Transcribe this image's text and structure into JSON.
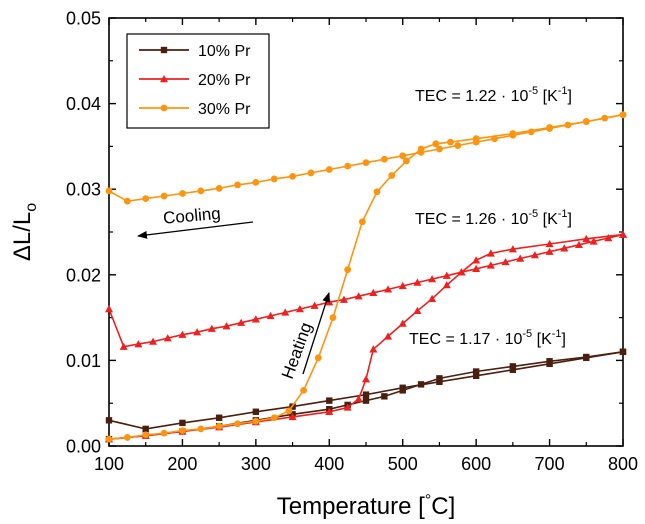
{
  "chart_data": {
    "type": "line",
    "xlabel_main": "Temperature [",
    "xlabel_deg": "°",
    "xlabel_end": "C]",
    "ylabel": "ΔL/L",
    "ylabel_sub": "o",
    "xlim": [
      100,
      800
    ],
    "ylim": [
      0.0,
      0.05
    ],
    "x_ticks": [
      "100",
      "200",
      "300",
      "400",
      "500",
      "600",
      "700",
      "800"
    ],
    "y_ticks": [
      "0.00",
      "0.01",
      "0.02",
      "0.03",
      "0.04",
      "0.05"
    ],
    "legend_position": "top-left",
    "series": [
      {
        "name": "10% Pr",
        "color": "#4a1f10",
        "marker": "square",
        "heating": [
          [
            100,
            0.0008
          ],
          [
            150,
            0.0012
          ],
          [
            200,
            0.0017
          ],
          [
            250,
            0.0023
          ],
          [
            300,
            0.003
          ],
          [
            350,
            0.0037
          ],
          [
            400,
            0.0043
          ],
          [
            425,
            0.0048
          ],
          [
            450,
            0.0053
          ],
          [
            475,
            0.0058
          ],
          [
            500,
            0.0065
          ],
          [
            525,
            0.0072
          ],
          [
            550,
            0.0079
          ],
          [
            600,
            0.0087
          ],
          [
            650,
            0.0093
          ],
          [
            700,
            0.0099
          ],
          [
            750,
            0.0104
          ],
          [
            800,
            0.011
          ]
        ],
        "cooling": [
          [
            800,
            0.011
          ],
          [
            750,
            0.0103
          ],
          [
            700,
            0.0096
          ],
          [
            650,
            0.0089
          ],
          [
            600,
            0.0082
          ],
          [
            550,
            0.0075
          ],
          [
            500,
            0.0068
          ],
          [
            450,
            0.006
          ],
          [
            400,
            0.0053
          ],
          [
            350,
            0.0046
          ],
          [
            300,
            0.004
          ],
          [
            250,
            0.0033
          ],
          [
            200,
            0.0027
          ],
          [
            150,
            0.002
          ],
          [
            100,
            0.003
          ]
        ]
      },
      {
        "name": "20% Pr",
        "color": "#ee2020",
        "marker": "triangle",
        "heating": [
          [
            100,
            0.0008
          ],
          [
            150,
            0.0012
          ],
          [
            200,
            0.0017
          ],
          [
            250,
            0.0022
          ],
          [
            300,
            0.0028
          ],
          [
            350,
            0.0034
          ],
          [
            400,
            0.004
          ],
          [
            425,
            0.0045
          ],
          [
            440,
            0.0055
          ],
          [
            450,
            0.0078
          ],
          [
            460,
            0.0113
          ],
          [
            480,
            0.0128
          ],
          [
            500,
            0.0143
          ],
          [
            520,
            0.0158
          ],
          [
            540,
            0.0172
          ],
          [
            560,
            0.0188
          ],
          [
            580,
            0.0203
          ],
          [
            600,
            0.0217
          ],
          [
            620,
            0.0225
          ],
          [
            650,
            0.023
          ],
          [
            700,
            0.0236
          ],
          [
            750,
            0.0242
          ],
          [
            800,
            0.0247
          ]
        ],
        "cooling": [
          [
            800,
            0.0247
          ],
          [
            780,
            0.0243
          ],
          [
            760,
            0.0239
          ],
          [
            740,
            0.0235
          ],
          [
            720,
            0.0231
          ],
          [
            700,
            0.0227
          ],
          [
            680,
            0.0223
          ],
          [
            660,
            0.0219
          ],
          [
            640,
            0.0215
          ],
          [
            620,
            0.0211
          ],
          [
            600,
            0.0207
          ],
          [
            580,
            0.0203
          ],
          [
            560,
            0.0199
          ],
          [
            540,
            0.0195
          ],
          [
            520,
            0.0191
          ],
          [
            500,
            0.0187
          ],
          [
            480,
            0.0183
          ],
          [
            460,
            0.0179
          ],
          [
            440,
            0.0175
          ],
          [
            420,
            0.0171
          ],
          [
            400,
            0.0168
          ],
          [
            380,
            0.0164
          ],
          [
            360,
            0.016
          ],
          [
            340,
            0.0156
          ],
          [
            320,
            0.0152
          ],
          [
            300,
            0.0148
          ],
          [
            280,
            0.0144
          ],
          [
            260,
            0.014
          ],
          [
            240,
            0.0137
          ],
          [
            220,
            0.0133
          ],
          [
            200,
            0.013
          ],
          [
            180,
            0.0126
          ],
          [
            160,
            0.0122
          ],
          [
            140,
            0.0119
          ],
          [
            120,
            0.0116
          ],
          [
            100,
            0.016
          ]
        ]
      },
      {
        "name": "30% Pr",
        "color": "#ff9410",
        "marker": "circle",
        "heating": [
          [
            100,
            0.0008
          ],
          [
            125,
            0.001
          ],
          [
            150,
            0.0013
          ],
          [
            175,
            0.0015
          ],
          [
            200,
            0.0018
          ],
          [
            225,
            0.002
          ],
          [
            250,
            0.0023
          ],
          [
            275,
            0.0026
          ],
          [
            300,
            0.0029
          ],
          [
            325,
            0.0033
          ],
          [
            345,
            0.0041
          ],
          [
            365,
            0.0065
          ],
          [
            385,
            0.0103
          ],
          [
            405,
            0.015
          ],
          [
            425,
            0.0206
          ],
          [
            445,
            0.0262
          ],
          [
            465,
            0.0297
          ],
          [
            485,
            0.0316
          ],
          [
            505,
            0.0333
          ],
          [
            525,
            0.0347
          ],
          [
            545,
            0.0353
          ],
          [
            565,
            0.0355
          ],
          [
            600,
            0.0359
          ],
          [
            650,
            0.0365
          ],
          [
            700,
            0.0372
          ],
          [
            750,
            0.0379
          ],
          [
            800,
            0.0387
          ]
        ],
        "cooling": [
          [
            800,
            0.0387
          ],
          [
            775,
            0.0383
          ],
          [
            750,
            0.0379
          ],
          [
            725,
            0.0375
          ],
          [
            700,
            0.0371
          ],
          [
            675,
            0.0367
          ],
          [
            650,
            0.0363
          ],
          [
            625,
            0.0359
          ],
          [
            600,
            0.0355
          ],
          [
            575,
            0.0351
          ],
          [
            550,
            0.0347
          ],
          [
            525,
            0.0343
          ],
          [
            500,
            0.0339
          ],
          [
            475,
            0.0335
          ],
          [
            450,
            0.0331
          ],
          [
            425,
            0.0327
          ],
          [
            400,
            0.0323
          ],
          [
            375,
            0.0319
          ],
          [
            350,
            0.0315
          ],
          [
            325,
            0.0312
          ],
          [
            300,
            0.0308
          ],
          [
            275,
            0.0305
          ],
          [
            250,
            0.0301
          ],
          [
            225,
            0.0298
          ],
          [
            200,
            0.0295
          ],
          [
            175,
            0.0292
          ],
          [
            150,
            0.0289
          ],
          [
            125,
            0.0286
          ],
          [
            100,
            0.0298
          ]
        ]
      }
    ],
    "annotations": [
      {
        "id": "tec30",
        "prefix": "TEC = 1.22 · 10",
        "sup1": "-5",
        "mid": " [K",
        "sup2": "-1",
        "end": "]"
      },
      {
        "id": "tec20",
        "prefix": "TEC = 1.26 · 10",
        "sup1": "-5",
        "mid": " [K",
        "sup2": "-1",
        "end": "]"
      },
      {
        "id": "tec10",
        "prefix": "TEC = 1.17 · 10",
        "sup1": "-5",
        "mid": " [K",
        "sup2": "-1",
        "end": "]"
      },
      {
        "id": "cooling",
        "text": "Cooling"
      },
      {
        "id": "heating",
        "text": "Heating"
      }
    ]
  }
}
